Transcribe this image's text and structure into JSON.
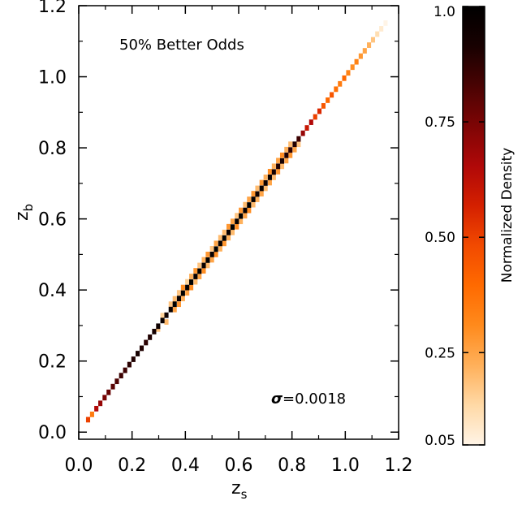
{
  "chart_data": {
    "type": "heatmap",
    "annotation": "50% Better Odds",
    "sigma_symbol": "σ",
    "sigma_value": "=0.0018",
    "xlabel_main": "z",
    "xlabel_sub": "s",
    "ylabel_main": "z",
    "ylabel_sub": "b",
    "xlim": [
      0.0,
      1.2
    ],
    "ylim": [
      -0.02,
      1.2
    ],
    "xticks": [
      "0.0",
      "0.2",
      "0.4",
      "0.6",
      "0.8",
      "1.0",
      "1.2"
    ],
    "yticks": [
      "0.0",
      "0.2",
      "0.4",
      "0.6",
      "0.8",
      "1.0",
      "1.2"
    ],
    "bin_width": 0.0155,
    "colorbar": {
      "label": "Normalized Density",
      "range": [
        0.05,
        1.0
      ],
      "ticks": [
        {
          "value": 1.0,
          "label": "1.0"
        },
        {
          "value": 0.75,
          "label": "0.75"
        },
        {
          "value": 0.5,
          "label": "0.50"
        },
        {
          "value": 0.25,
          "label": "0.25"
        },
        {
          "value": 0.05,
          "label": "0.05"
        }
      ],
      "colors": [
        "#fff4e6",
        "#ffd9a6",
        "#ffb05a",
        "#ff8a1c",
        "#ff6a00",
        "#f24a00",
        "#d42000",
        "#b00808",
        "#7e0505",
        "#4a0303",
        "#180101",
        "#000000"
      ]
    },
    "diagonal_bins": [
      [
        0.035,
        0.5
      ],
      [
        0.05,
        0.35
      ],
      [
        0.066,
        0.65
      ],
      [
        0.081,
        0.7
      ],
      [
        0.097,
        0.75
      ],
      [
        0.112,
        0.78
      ],
      [
        0.128,
        0.8
      ],
      [
        0.143,
        0.82
      ],
      [
        0.159,
        0.85
      ],
      [
        0.174,
        0.85
      ],
      [
        0.19,
        0.88
      ],
      [
        0.205,
        0.9
      ],
      [
        0.221,
        0.92
      ],
      [
        0.236,
        0.9
      ],
      [
        0.252,
        0.88
      ],
      [
        0.267,
        0.9
      ],
      [
        0.283,
        0.92
      ],
      [
        0.298,
        0.95
      ],
      [
        0.314,
        0.97
      ],
      [
        0.329,
        0.95
      ],
      [
        0.345,
        0.97
      ],
      [
        0.36,
        1.0
      ],
      [
        0.376,
        0.97
      ],
      [
        0.391,
        1.0
      ],
      [
        0.407,
        0.98
      ],
      [
        0.422,
        1.0
      ],
      [
        0.438,
        0.97
      ],
      [
        0.453,
        1.0
      ],
      [
        0.469,
        0.98
      ],
      [
        0.484,
        1.0
      ],
      [
        0.5,
        0.97
      ],
      [
        0.515,
        1.0
      ],
      [
        0.531,
        0.98
      ],
      [
        0.546,
        1.0
      ],
      [
        0.562,
        0.97
      ],
      [
        0.577,
        1.0
      ],
      [
        0.593,
        0.98
      ],
      [
        0.608,
        1.0
      ],
      [
        0.624,
        0.97
      ],
      [
        0.639,
        1.0
      ],
      [
        0.655,
        0.98
      ],
      [
        0.67,
        0.95
      ],
      [
        0.686,
        0.97
      ],
      [
        0.701,
        0.95
      ],
      [
        0.717,
        0.97
      ],
      [
        0.732,
        0.92
      ],
      [
        0.748,
        0.9
      ],
      [
        0.763,
        0.92
      ],
      [
        0.779,
        0.9
      ],
      [
        0.794,
        0.88
      ],
      [
        0.81,
        0.9
      ],
      [
        0.825,
        0.85
      ],
      [
        0.841,
        0.7
      ],
      [
        0.856,
        0.6
      ],
      [
        0.872,
        0.65
      ],
      [
        0.887,
        0.5
      ],
      [
        0.903,
        0.55
      ],
      [
        0.918,
        0.45
      ],
      [
        0.934,
        0.4
      ],
      [
        0.949,
        0.45
      ],
      [
        0.965,
        0.38
      ],
      [
        0.98,
        0.35
      ],
      [
        0.996,
        0.4
      ],
      [
        1.011,
        0.33
      ],
      [
        1.027,
        0.3
      ],
      [
        1.042,
        0.33
      ],
      [
        1.058,
        0.28
      ],
      [
        1.073,
        0.25
      ],
      [
        1.089,
        0.22
      ],
      [
        1.104,
        0.18
      ],
      [
        1.12,
        0.12
      ],
      [
        1.135,
        0.08
      ],
      [
        1.151,
        0.05
      ]
    ],
    "offdiagonal_bins": [
      [
        0.298,
        0.29,
        0.18
      ],
      [
        0.314,
        0.328,
        0.15
      ],
      [
        0.329,
        0.31,
        0.2
      ],
      [
        0.345,
        0.36,
        0.18
      ],
      [
        0.36,
        0.345,
        0.25
      ],
      [
        0.36,
        0.375,
        0.2
      ],
      [
        0.376,
        0.36,
        0.28
      ],
      [
        0.376,
        0.392,
        0.18
      ],
      [
        0.391,
        0.376,
        0.22
      ],
      [
        0.391,
        0.407,
        0.3
      ],
      [
        0.407,
        0.392,
        0.25
      ],
      [
        0.407,
        0.423,
        0.15
      ],
      [
        0.422,
        0.407,
        0.3
      ],
      [
        0.422,
        0.438,
        0.22
      ],
      [
        0.438,
        0.423,
        0.2
      ],
      [
        0.438,
        0.454,
        0.28
      ],
      [
        0.453,
        0.438,
        0.25
      ],
      [
        0.453,
        0.469,
        0.18
      ],
      [
        0.469,
        0.454,
        0.3
      ],
      [
        0.469,
        0.485,
        0.22
      ],
      [
        0.484,
        0.469,
        0.2
      ],
      [
        0.484,
        0.5,
        0.28
      ],
      [
        0.5,
        0.485,
        0.25
      ],
      [
        0.5,
        0.516,
        0.18
      ],
      [
        0.515,
        0.5,
        0.3
      ],
      [
        0.515,
        0.531,
        0.25
      ],
      [
        0.531,
        0.516,
        0.22
      ],
      [
        0.531,
        0.547,
        0.2
      ],
      [
        0.546,
        0.531,
        0.28
      ],
      [
        0.546,
        0.562,
        0.2
      ],
      [
        0.562,
        0.547,
        0.22
      ],
      [
        0.562,
        0.578,
        0.28
      ],
      [
        0.577,
        0.562,
        0.2
      ],
      [
        0.577,
        0.593,
        0.25
      ],
      [
        0.593,
        0.578,
        0.3
      ],
      [
        0.593,
        0.609,
        0.18
      ],
      [
        0.608,
        0.593,
        0.22
      ],
      [
        0.608,
        0.624,
        0.28
      ],
      [
        0.624,
        0.609,
        0.25
      ],
      [
        0.624,
        0.64,
        0.2
      ],
      [
        0.639,
        0.624,
        0.3
      ],
      [
        0.639,
        0.655,
        0.25
      ],
      [
        0.655,
        0.64,
        0.2
      ],
      [
        0.655,
        0.671,
        0.28
      ],
      [
        0.67,
        0.655,
        0.22
      ],
      [
        0.67,
        0.686,
        0.2
      ],
      [
        0.686,
        0.671,
        0.25
      ],
      [
        0.686,
        0.702,
        0.28
      ],
      [
        0.701,
        0.686,
        0.2
      ],
      [
        0.701,
        0.717,
        0.22
      ],
      [
        0.717,
        0.702,
        0.25
      ],
      [
        0.717,
        0.733,
        0.3
      ],
      [
        0.732,
        0.717,
        0.2
      ],
      [
        0.732,
        0.748,
        0.22
      ],
      [
        0.748,
        0.733,
        0.28
      ],
      [
        0.748,
        0.764,
        0.25
      ],
      [
        0.763,
        0.748,
        0.2
      ],
      [
        0.763,
        0.779,
        0.3
      ],
      [
        0.779,
        0.764,
        0.25
      ],
      [
        0.779,
        0.795,
        0.22
      ],
      [
        0.794,
        0.779,
        0.28
      ],
      [
        0.794,
        0.81,
        0.2
      ],
      [
        0.81,
        0.795,
        0.25
      ],
      [
        0.825,
        0.81,
        0.18
      ]
    ]
  }
}
